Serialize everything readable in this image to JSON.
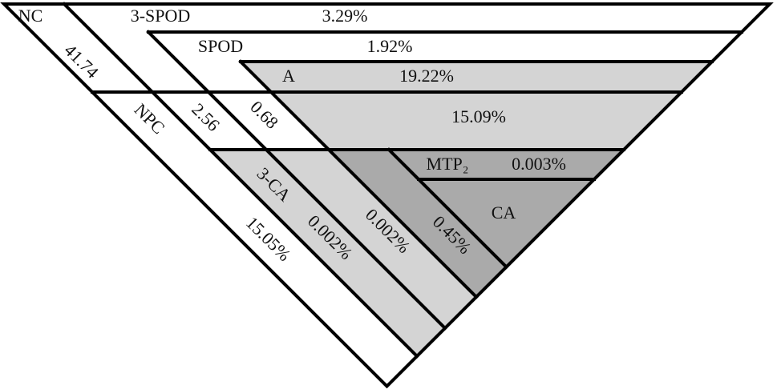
{
  "regions": [
    {
      "name": "NC",
      "value": "41.74"
    },
    {
      "name": "3-SPOD",
      "value": "3.29%"
    },
    {
      "name": "SPOD",
      "value": "1.92%"
    },
    {
      "name": "A",
      "value": "19.22%"
    },
    {
      "name": "NPC",
      "value": "15.05%"
    },
    {
      "name": "3-CA",
      "value": "0.002%"
    },
    {
      "name": "MTP₂",
      "value": "0.003%"
    },
    {
      "name": "CA"
    }
  ],
  "cells": [
    "2.56",
    "0.68",
    "15.09%",
    "0.002%",
    "0.45%"
  ]
}
